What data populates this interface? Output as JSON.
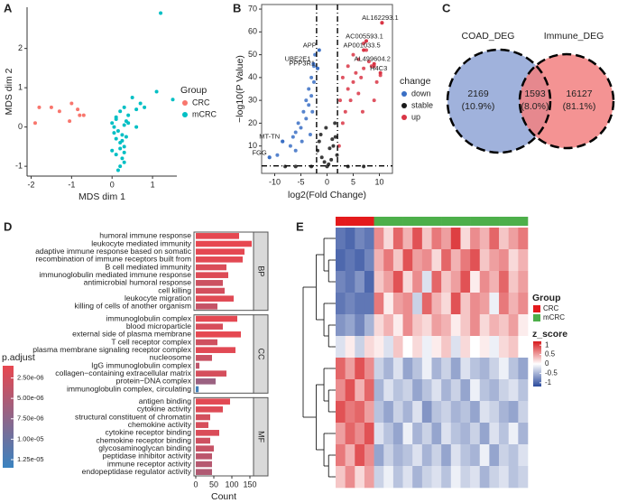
{
  "chart_data": [
    {
      "panel": "A",
      "type": "scatter",
      "xlabel": "MDS dim 1",
      "ylabel": "MDS dim 2",
      "xlim": [
        -2.1,
        1.6
      ],
      "ylim": [
        -1.25,
        3.05
      ],
      "xticks": [
        -2,
        -1,
        0,
        1
      ],
      "yticks": [
        -1,
        0,
        1,
        2
      ],
      "legend_title": "Group",
      "series": [
        {
          "name": "CRC",
          "color": "#f8766d",
          "x": [
            -1.9,
            -1.8,
            -1.5,
            -1.3,
            -1.0,
            -0.85,
            -0.8,
            -0.7,
            -1.05
          ],
          "values": [
            0.1,
            0.5,
            0.5,
            0.4,
            0.6,
            0.45,
            0.3,
            0.3,
            0.15
          ]
        },
        {
          "name": "mCRC",
          "color": "#00bfc4",
          "x": [
            1.2,
            1.5,
            1.1,
            0.5,
            0.7,
            0.3,
            0.2,
            0.4,
            0.1,
            0.0,
            0.05,
            0.15,
            0.25,
            0.35,
            0.6,
            0.8,
            0.1,
            0.2,
            0.3,
            0.0,
            0.1,
            0.25,
            0.3,
            0.2,
            0.15,
            0.3,
            0.1,
            0.35,
            0.2,
            0.05,
            0.3,
            0.4,
            0.25,
            0.6
          ],
          "values": [
            2.9,
            0.7,
            0.9,
            0.75,
            0.6,
            0.5,
            0.4,
            0.3,
            0.2,
            0.1,
            0.0,
            -0.1,
            -0.2,
            0.15,
            0.45,
            0.5,
            -0.3,
            -0.4,
            -0.5,
            -0.6,
            -0.7,
            -0.8,
            -0.9,
            -1.0,
            -1.1,
            0.05,
            0.25,
            -0.25,
            -0.55,
            -0.15,
            -0.65,
            0.1,
            -0.35,
            0.0
          ]
        }
      ]
    },
    {
      "panel": "B",
      "type": "volcano",
      "xlabel": "log2(Fold Change)",
      "ylabel": "−log10(P Value)",
      "xlim": [
        -12.5,
        12.5
      ],
      "ylim": [
        -2,
        72
      ],
      "xticks": [
        -10,
        -5,
        0,
        5,
        10
      ],
      "yticks": [
        10,
        20,
        30,
        40,
        50,
        60,
        70
      ],
      "legend_title": "change",
      "cutoff_x": [
        -2,
        2
      ],
      "cutoff_y": 1.3,
      "series": [
        {
          "name": "down",
          "color": "#3a6fc4",
          "x": [
            -11,
            -9.5,
            -8.5,
            -7,
            -6.5,
            -6,
            -5.5,
            -5,
            -4.5,
            -4,
            -4,
            -3.5,
            -3.5,
            -3,
            -3,
            -2.5,
            -2.5,
            -2.3,
            -6,
            -4.8,
            -3.2,
            -2.8
          ],
          "values": [
            5,
            6,
            12,
            10,
            14,
            16,
            20,
            18,
            25,
            22,
            30,
            28,
            35,
            32,
            40,
            38,
            45,
            50,
            8,
            12,
            15,
            25
          ]
        },
        {
          "name": "stable",
          "color": "#1a1a1a",
          "x": [
            -1.8,
            -1.5,
            -1,
            -0.5,
            0,
            0.3,
            0.8,
            1.2,
            1.6,
            1.9,
            -1.2,
            -0.2,
            0.5,
            1,
            -3,
            -6,
            4,
            7,
            -8,
            1.5
          ],
          "values": [
            8,
            12,
            5,
            3,
            1,
            2,
            4,
            10,
            14,
            6,
            15,
            18,
            9,
            13,
            1,
            1,
            1,
            1,
            1,
            20
          ]
        },
        {
          "name": "up",
          "color": "#d93545",
          "x": [
            2.3,
            2.5,
            3,
            3,
            3.5,
            4,
            4,
            4.5,
            5,
            5,
            5.5,
            6,
            6,
            6.5,
            7,
            7,
            7.5,
            8,
            8.5,
            9,
            9.5,
            10.5,
            10.2,
            9,
            6.8
          ],
          "values": [
            10,
            30,
            20,
            40,
            25,
            35,
            45,
            30,
            38,
            50,
            42,
            33,
            48,
            40,
            44,
            55,
            52,
            47,
            45,
            45,
            38,
            64,
            41,
            30,
            25
          ]
        }
      ],
      "annotations": [
        {
          "label": "AL162293.1",
          "x": 10.5,
          "y": 64
        },
        {
          "label": "AC005593.1",
          "x": 7.5,
          "y": 56
        },
        {
          "label": "AP001033.5",
          "x": 7,
          "y": 52
        },
        {
          "label": "AL499604.2",
          "x": 9,
          "y": 46
        },
        {
          "label": "H4C3",
          "x": 10.2,
          "y": 42
        },
        {
          "label": "APP",
          "x": -1.5,
          "y": 52
        },
        {
          "label": "UBE2E1",
          "x": -2.6,
          "y": 46
        },
        {
          "label": "PPP3R1",
          "x": -1.8,
          "y": 44
        },
        {
          "label": "MT-TN",
          "x": -8.5,
          "y": 12
        },
        {
          "label": "FGG",
          "x": -11,
          "y": 5
        }
      ]
    },
    {
      "panel": "C",
      "type": "venn",
      "sets": [
        {
          "name": "COAD_DEG",
          "color": "#8fa5d6"
        },
        {
          "name": "Immune_DEG",
          "color": "#f28080"
        }
      ],
      "regions": [
        {
          "value": 2169,
          "percent": {
            "value": 10.9,
            "label": "(10.9%)"
          }
        },
        {
          "value": 1593,
          "percent": {
            "value": 8.0,
            "label": "(8.0%)"
          }
        },
        {
          "value": 16127,
          "percent": {
            "value": 81.1,
            "label": "(81.1%)"
          }
        }
      ]
    },
    {
      "panel": "D",
      "type": "facet_barh",
      "xlabel": "Count",
      "xlim": [
        0,
        160
      ],
      "xticks": [
        0,
        50,
        100,
        150
      ],
      "color_title": "p.adjust",
      "color_lim": [
        1e-06,
        1.35e-05
      ],
      "color_low": "#e8474f",
      "color_high": "#3a83c0",
      "color_ticks": [
        {
          "value": 2.5e-06,
          "label": "2.50e-06"
        },
        {
          "value": 5e-06,
          "label": "5.00e-06"
        },
        {
          "value": 7.5e-06,
          "label": "7.50e-06"
        },
        {
          "value": 1e-05,
          "label": "1.00e-05"
        },
        {
          "value": 1.25e-05,
          "label": "1.25e-05"
        }
      ],
      "facets": [
        {
          "name": "BP",
          "categories": [
            "humoral immune response",
            "leukocyte mediated immunity",
            "adaptive immune response based on somatic",
            "recombination of immune receptors built from",
            "B cell mediated immunity",
            "immunoglobulin mediated immune response",
            "antimicrobial humoral response",
            "cell killing",
            "leukocyte migration",
            "killing of cells of another organism"
          ],
          "values": [
            120,
            155,
            135,
            130,
            85,
            90,
            75,
            80,
            105,
            60
          ],
          "p_adjust": [
            1.2e-06,
            1.1e-06,
            1.3e-06,
            1.4e-06,
            2e-06,
            1.8e-06,
            3e-06,
            2.5e-06,
            1.6e-06,
            3.5e-06
          ]
        },
        {
          "name": "CC",
          "categories": [
            "immunoglobulin complex",
            "blood microparticle",
            "external side of plasma membrane",
            "T cell receptor complex",
            "plasma membrane signaling receptor complex",
            "nucleosome",
            "IgG immunoglobulin complex",
            "collagen−containing extracellular matrix",
            "protein−DNA complex",
            "immunoglobulin complex, circulating"
          ],
          "values": [
            115,
            75,
            125,
            60,
            110,
            45,
            10,
            85,
            55,
            8
          ],
          "p_adjust": [
            1.3e-06,
            2.2e-06,
            1.2e-06,
            2.8e-06,
            1.5e-06,
            3.2e-06,
            4e-06,
            2.4e-06,
            6.5e-06,
            1.3e-05
          ]
        },
        {
          "name": "MF",
          "categories": [
            "antigen binding",
            "cytokine activity",
            "structural constituent of chromatin",
            "chemokine activity",
            "cytokine receptor binding",
            "chemokine receptor binding",
            "glycosaminoglycan binding",
            "peptidase inhibitor activity",
            "immune receptor activity",
            "endopeptidase regulator activity"
          ],
          "values": [
            95,
            75,
            40,
            35,
            65,
            40,
            50,
            45,
            45,
            45
          ],
          "p_adjust": [
            1.4e-06,
            1.8e-06,
            2.6e-06,
            2.2e-06,
            2e-06,
            2.9e-06,
            3.4e-06,
            4.2e-06,
            4.6e-06,
            5e-06
          ]
        }
      ]
    },
    {
      "panel": "E",
      "type": "heatmap",
      "groups_title": "Group",
      "groups": [
        {
          "name": "CRC",
          "color": "#e41a1c"
        },
        {
          "name": "mCRC",
          "color": "#4daf4a"
        }
      ],
      "column_groups": [
        "CRC",
        "CRC",
        "CRC",
        "CRC",
        "mCRC",
        "mCRC",
        "mCRC",
        "mCRC",
        "mCRC",
        "mCRC",
        "mCRC",
        "mCRC",
        "mCRC",
        "mCRC",
        "mCRC",
        "mCRC",
        "mCRC",
        "mCRC",
        "mCRC",
        "mCRC"
      ],
      "z_title": "z_score",
      "zlim": [
        -1.2,
        1.2
      ],
      "zticks": [
        1,
        0.5,
        0,
        -0.5,
        -1
      ],
      "z_low": "#2b4a9c",
      "z_mid": "#ffffff",
      "z_high": "#d7191c",
      "z": [
        [
          -0.9,
          -1,
          -0.8,
          -0.9,
          0.6,
          0.2,
          0.8,
          0.4,
          0.9,
          0.3,
          0.7,
          0.5,
          1,
          0.2,
          0.6,
          0.4,
          0.8,
          0.3,
          0.5,
          0.7
        ],
        [
          -1,
          -0.9,
          -1,
          -0.8,
          0.4,
          0.7,
          0.3,
          0.9,
          0.5,
          0.6,
          0.2,
          0.8,
          0.4,
          0.7,
          0.9,
          0.3,
          0.5,
          0.6,
          0.2,
          0.4
        ],
        [
          -0.8,
          -0.9,
          -0.7,
          -1,
          0.3,
          0.5,
          0.9,
          0.2,
          0.6,
          -0.2,
          0.8,
          0.3,
          0.5,
          0.9,
          0.1,
          0.6,
          0.4,
          0.8,
          0.3,
          0.5
        ],
        [
          -0.9,
          -0.8,
          -0.9,
          -0.9,
          0.7,
          0.1,
          0.5,
          0.6,
          -0.3,
          0.8,
          0.4,
          0.2,
          0.9,
          0.3,
          0.6,
          0.5,
          -0.1,
          0.7,
          0.4,
          0.6
        ],
        [
          -0.7,
          -0.6,
          -0.8,
          -0.5,
          0.2,
          0.4,
          0.1,
          0.6,
          0.3,
          0.2,
          0.5,
          0.4,
          0.1,
          0.3,
          0.6,
          0.2,
          0.4,
          0.3,
          0.5,
          0.1
        ],
        [
          -0.2,
          0.1,
          -0.3,
          0.2,
          0.1,
          -0.2,
          0.3,
          0,
          0.2,
          -0.1,
          0.1,
          0.3,
          -0.2,
          0.2,
          0,
          0.1,
          -0.1,
          0.2,
          0.3,
          0
        ],
        [
          0.8,
          0.5,
          0.9,
          0.6,
          -0.3,
          -0.5,
          -0.2,
          -0.6,
          -0.4,
          -0.1,
          -0.5,
          -0.3,
          -0.6,
          -0.2,
          -0.4,
          -0.5,
          -0.3,
          -0.1,
          -0.4,
          -0.6
        ],
        [
          0.6,
          0.9,
          0.4,
          0.8,
          -0.5,
          -0.2,
          -0.4,
          -0.3,
          -0.6,
          -0.4,
          -0.2,
          -0.5,
          -0.3,
          -0.6,
          -0.1,
          -0.4,
          -0.5,
          -0.3,
          -0.2,
          -0.4
        ],
        [
          0.9,
          0.7,
          0.8,
          0.5,
          -0.4,
          -0.6,
          -0.3,
          -0.5,
          -0.2,
          -0.7,
          -0.4,
          -0.3,
          -0.5,
          -0.4,
          -0.6,
          -0.2,
          -0.3,
          -0.5,
          -0.6,
          -0.3
        ],
        [
          0.5,
          0.8,
          0.6,
          0.9,
          -0.2,
          -0.4,
          -0.6,
          -0.1,
          -0.5,
          -0.3,
          -0.6,
          -0.2,
          -0.4,
          -0.5,
          -0.3,
          -0.6,
          -0.2,
          -0.4,
          -0.1,
          -0.5
        ],
        [
          0.7,
          0.4,
          0.9,
          0.6,
          -0.6,
          -0.3,
          -0.5,
          -0.4,
          -0.2,
          -0.5,
          -0.3,
          -0.6,
          -0.2,
          -0.4,
          -0.5,
          -0.1,
          -0.6,
          -0.3,
          -0.4,
          -0.2
        ],
        [
          0.3,
          0.6,
          0.2,
          0.5,
          -0.3,
          -0.1,
          -0.4,
          -0.2,
          -0.5,
          -0.3,
          -0.2,
          -0.4,
          -0.1,
          -0.3,
          -0.2,
          -0.5,
          -0.3,
          -0.2,
          -0.4,
          -0.3
        ]
      ]
    }
  ]
}
